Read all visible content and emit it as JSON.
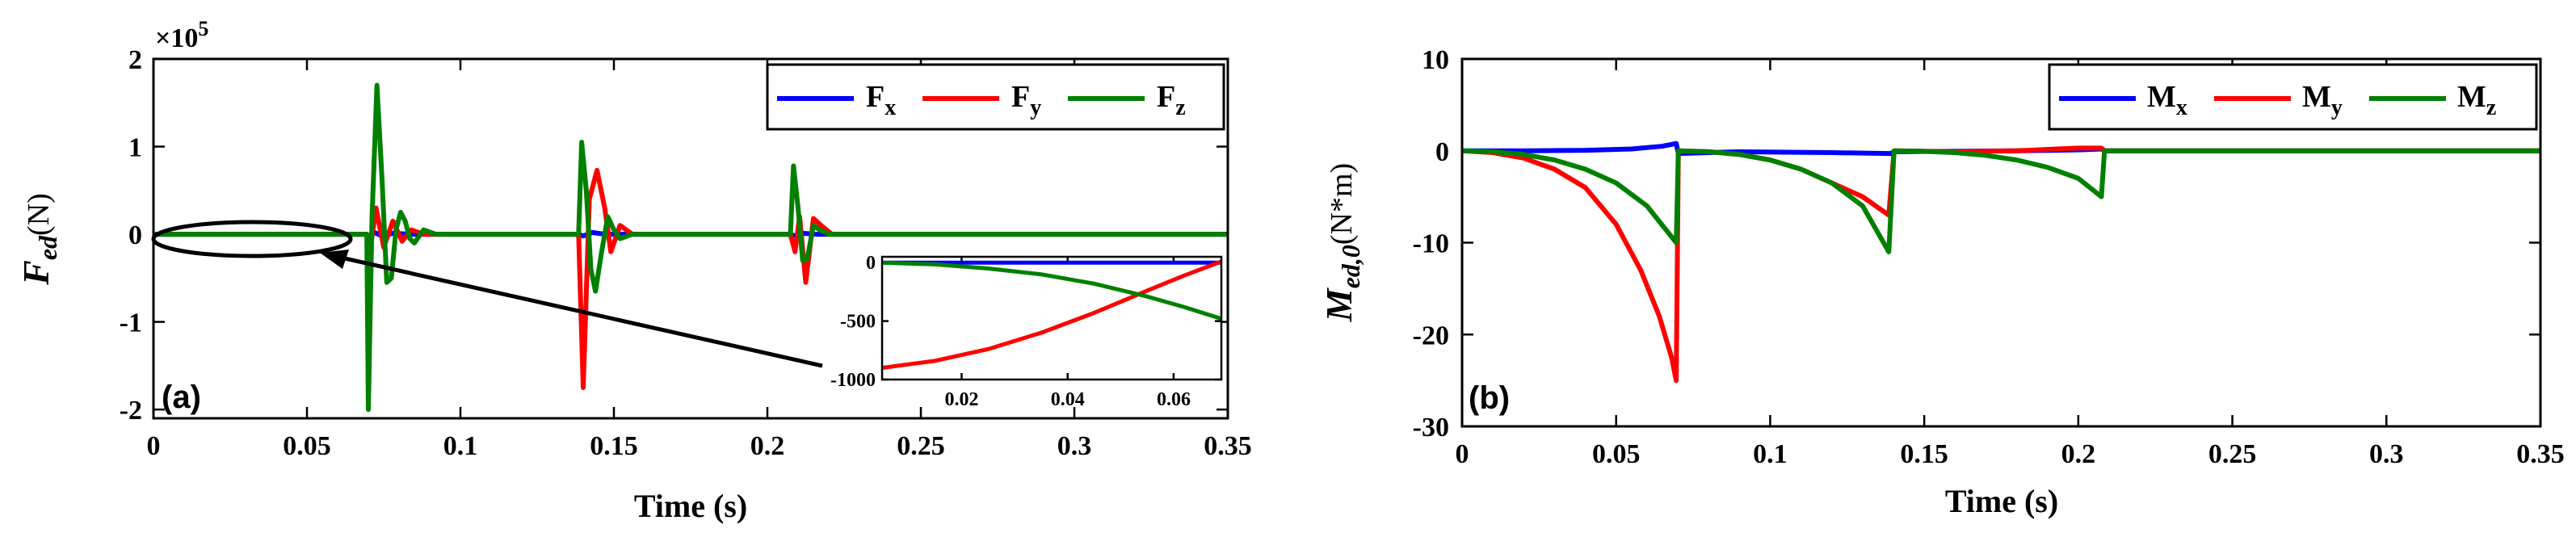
{
  "colors": {
    "x": "#0000ff",
    "y": "#ff0000",
    "z": "#008000"
  },
  "chart_data": [
    {
      "type": "line",
      "panel_label": "(a)",
      "title": "",
      "xlabel": "Time (s)",
      "ylabel_main": "F",
      "ylabel_sub": "ed",
      "ylabel_unit": "(N)",
      "y_exponent_label": "×10",
      "y_exponent_power": "5",
      "xlim": [
        0,
        0.35
      ],
      "ylim": [
        -2.1,
        2.0
      ],
      "xticks": [
        0,
        0.05,
        0.1,
        0.15,
        0.2,
        0.25,
        0.3,
        0.35
      ],
      "xtick_labels": [
        "0",
        "0.05",
        "0.1",
        "0.15",
        "0.2",
        "0.25",
        "0.3",
        "0.35"
      ],
      "yticks": [
        -2,
        -1,
        0,
        1,
        2
      ],
      "ytick_labels": [
        "-2",
        "-1",
        "0",
        "1",
        "2"
      ],
      "legend": {
        "position": "top-right",
        "entries": [
          {
            "main": "F",
            "sub": "x",
            "series": "x"
          },
          {
            "main": "F",
            "sub": "y",
            "series": "y"
          },
          {
            "main": "F",
            "sub": "z",
            "series": "z"
          }
        ]
      },
      "series": [
        {
          "name": "Fx",
          "key": "x",
          "points": [
            [
              0,
              0
            ],
            [
              0.0695,
              0
            ],
            [
              0.0705,
              -0.03
            ],
            [
              0.072,
              0.02
            ],
            [
              0.0745,
              -0.02
            ],
            [
              0.078,
              0.01
            ],
            [
              0.084,
              0
            ],
            [
              0.1385,
              0
            ],
            [
              0.14,
              -0.02
            ],
            [
              0.143,
              0.02
            ],
            [
              0.147,
              0
            ],
            [
              0.2075,
              0
            ],
            [
              0.209,
              -0.02
            ],
            [
              0.212,
              0.01
            ],
            [
              0.216,
              0
            ],
            [
              0.35,
              0
            ]
          ]
        },
        {
          "name": "Fy",
          "key": "y",
          "points": [
            [
              0,
              0
            ],
            [
              0.0695,
              0
            ],
            [
              0.0705,
              -0.2
            ],
            [
              0.0725,
              0.3
            ],
            [
              0.075,
              -0.15
            ],
            [
              0.078,
              0.15
            ],
            [
              0.081,
              -0.08
            ],
            [
              0.084,
              0.05
            ],
            [
              0.088,
              0
            ],
            [
              0.1385,
              0
            ],
            [
              0.14,
              -1.75
            ],
            [
              0.142,
              0.4
            ],
            [
              0.1445,
              0.73
            ],
            [
              0.147,
              0.3
            ],
            [
              0.149,
              -0.2
            ],
            [
              0.152,
              0.1
            ],
            [
              0.156,
              0
            ],
            [
              0.2075,
              0
            ],
            [
              0.209,
              -0.2
            ],
            [
              0.2105,
              0.2
            ],
            [
              0.2125,
              -0.55
            ],
            [
              0.215,
              0.18
            ],
            [
              0.2175,
              0.1
            ],
            [
              0.221,
              0
            ],
            [
              0.35,
              0
            ]
          ]
        },
        {
          "name": "Fz",
          "key": "z",
          "points": [
            [
              0,
              0
            ],
            [
              0.0695,
              0
            ],
            [
              0.07,
              -2.0
            ],
            [
              0.0712,
              0.2
            ],
            [
              0.0728,
              1.7
            ],
            [
              0.0745,
              0.6
            ],
            [
              0.076,
              -0.55
            ],
            [
              0.0775,
              -0.5
            ],
            [
              0.079,
              0.05
            ],
            [
              0.0805,
              0.25
            ],
            [
              0.082,
              0.15
            ],
            [
              0.0835,
              -0.05
            ],
            [
              0.085,
              -0.1
            ],
            [
              0.088,
              0.05
            ],
            [
              0.092,
              0
            ],
            [
              0.1385,
              0
            ],
            [
              0.1395,
              1.05
            ],
            [
              0.141,
              0.5
            ],
            [
              0.1425,
              -0.4
            ],
            [
              0.144,
              -0.65
            ],
            [
              0.146,
              -0.2
            ],
            [
              0.148,
              0.2
            ],
            [
              0.15,
              0.05
            ],
            [
              0.152,
              -0.05
            ],
            [
              0.156,
              0
            ],
            [
              0.2075,
              0
            ],
            [
              0.2085,
              0.78
            ],
            [
              0.21,
              0.3
            ],
            [
              0.2115,
              -0.3
            ],
            [
              0.213,
              -0.28
            ],
            [
              0.215,
              0.1
            ],
            [
              0.217,
              0.05
            ],
            [
              0.22,
              0
            ],
            [
              0.35,
              0
            ]
          ]
        }
      ],
      "annotation": {
        "text": "",
        "shape": "ellipse around the interval 0–0.069 s at y=0 with an arrow pointing to the inset"
      },
      "inset": {
        "xlim": [
          0.005,
          0.069
        ],
        "ylim": [
          -1000,
          50
        ],
        "xticks": [
          0.02,
          0.04,
          0.06
        ],
        "xtick_labels": [
          "0.02",
          "0.04",
          "0.06"
        ],
        "yticks": [
          0,
          -500,
          -1000
        ],
        "ytick_labels": [
          "0",
          "-500",
          "-1000"
        ],
        "series": [
          {
            "name": "Fx",
            "key": "x",
            "points": [
              [
                0.005,
                0
              ],
              [
                0.069,
                0
              ]
            ]
          },
          {
            "name": "Fy",
            "key": "y",
            "points": [
              [
                0.005,
                -900
              ],
              [
                0.015,
                -840
              ],
              [
                0.025,
                -740
              ],
              [
                0.035,
                -600
              ],
              [
                0.045,
                -430
              ],
              [
                0.055,
                -240
              ],
              [
                0.062,
                -110
              ],
              [
                0.069,
                10
              ]
            ]
          },
          {
            "name": "Fz",
            "key": "z",
            "points": [
              [
                0.005,
                0
              ],
              [
                0.015,
                -15
              ],
              [
                0.025,
                -50
              ],
              [
                0.035,
                -100
              ],
              [
                0.045,
                -180
              ],
              [
                0.055,
                -290
              ],
              [
                0.062,
                -380
              ],
              [
                0.069,
                -480
              ]
            ]
          }
        ]
      }
    },
    {
      "type": "line",
      "panel_label": "(b)",
      "title": "",
      "xlabel": "Time (s)",
      "ylabel_main": "M",
      "ylabel_sub": "ed,0",
      "ylabel_unit": "(N*m)",
      "xlim": [
        0,
        0.35
      ],
      "ylim": [
        -30,
        10
      ],
      "xticks": [
        0,
        0.05,
        0.1,
        0.15,
        0.2,
        0.25,
        0.3,
        0.35
      ],
      "xtick_labels": [
        "0",
        "0.05",
        "0.1",
        "0.15",
        "0.2",
        "0.25",
        "0.3",
        "0.35"
      ],
      "yticks": [
        -30,
        -20,
        -10,
        0,
        10
      ],
      "ytick_labels": [
        "-30",
        "-20",
        "-10",
        "0",
        "10"
      ],
      "legend": {
        "position": "top-right",
        "entries": [
          {
            "main": "M",
            "sub": "x",
            "series": "x"
          },
          {
            "main": "M",
            "sub": "y",
            "series": "y"
          },
          {
            "main": "M",
            "sub": "z",
            "series": "z"
          }
        ]
      },
      "series": [
        {
          "name": "Mx",
          "key": "x",
          "points": [
            [
              0,
              0
            ],
            [
              0.02,
              0
            ],
            [
              0.04,
              0.05
            ],
            [
              0.055,
              0.2
            ],
            [
              0.065,
              0.5
            ],
            [
              0.0695,
              0.8
            ],
            [
              0.0702,
              -0.3
            ],
            [
              0.09,
              -0.1
            ],
            [
              0.12,
              -0.2
            ],
            [
              0.139,
              -0.3
            ],
            [
              0.1402,
              -0.1
            ],
            [
              0.18,
              0
            ],
            [
              0.2,
              0.1
            ],
            [
              0.2075,
              0.2
            ],
            [
              0.2085,
              0
            ],
            [
              0.35,
              0
            ]
          ]
        },
        {
          "name": "My",
          "key": "y",
          "points": [
            [
              0,
              0
            ],
            [
              0.01,
              -0.2
            ],
            [
              0.02,
              -0.8
            ],
            [
              0.03,
              -2
            ],
            [
              0.04,
              -4
            ],
            [
              0.05,
              -8
            ],
            [
              0.058,
              -13
            ],
            [
              0.064,
              -18
            ],
            [
              0.068,
              -22.5
            ],
            [
              0.0695,
              -25
            ],
            [
              0.0702,
              0
            ],
            [
              0.08,
              -0.1
            ],
            [
              0.09,
              -0.4
            ],
            [
              0.1,
              -1
            ],
            [
              0.11,
              -2
            ],
            [
              0.12,
              -3.5
            ],
            [
              0.13,
              -5
            ],
            [
              0.1385,
              -7
            ],
            [
              0.1402,
              0
            ],
            [
              0.16,
              -0.1
            ],
            [
              0.18,
              0
            ],
            [
              0.2,
              0.3
            ],
            [
              0.2075,
              0.3
            ],
            [
              0.2085,
              0
            ],
            [
              0.35,
              0
            ]
          ]
        },
        {
          "name": "Mz",
          "key": "z",
          "points": [
            [
              0,
              0
            ],
            [
              0.01,
              -0.1
            ],
            [
              0.02,
              -0.4
            ],
            [
              0.03,
              -1
            ],
            [
              0.04,
              -2
            ],
            [
              0.05,
              -3.5
            ],
            [
              0.06,
              -6
            ],
            [
              0.0695,
              -10
            ],
            [
              0.0702,
              0
            ],
            [
              0.08,
              -0.1
            ],
            [
              0.09,
              -0.4
            ],
            [
              0.1,
              -1
            ],
            [
              0.11,
              -2
            ],
            [
              0.12,
              -3.5
            ],
            [
              0.13,
              -6
            ],
            [
              0.1385,
              -11
            ],
            [
              0.1402,
              0
            ],
            [
              0.15,
              -0.05
            ],
            [
              0.16,
              -0.2
            ],
            [
              0.17,
              -0.5
            ],
            [
              0.18,
              -1
            ],
            [
              0.19,
              -1.8
            ],
            [
              0.2,
              -3
            ],
            [
              0.2075,
              -5
            ],
            [
              0.2085,
              0
            ],
            [
              0.35,
              0
            ]
          ]
        }
      ]
    }
  ]
}
